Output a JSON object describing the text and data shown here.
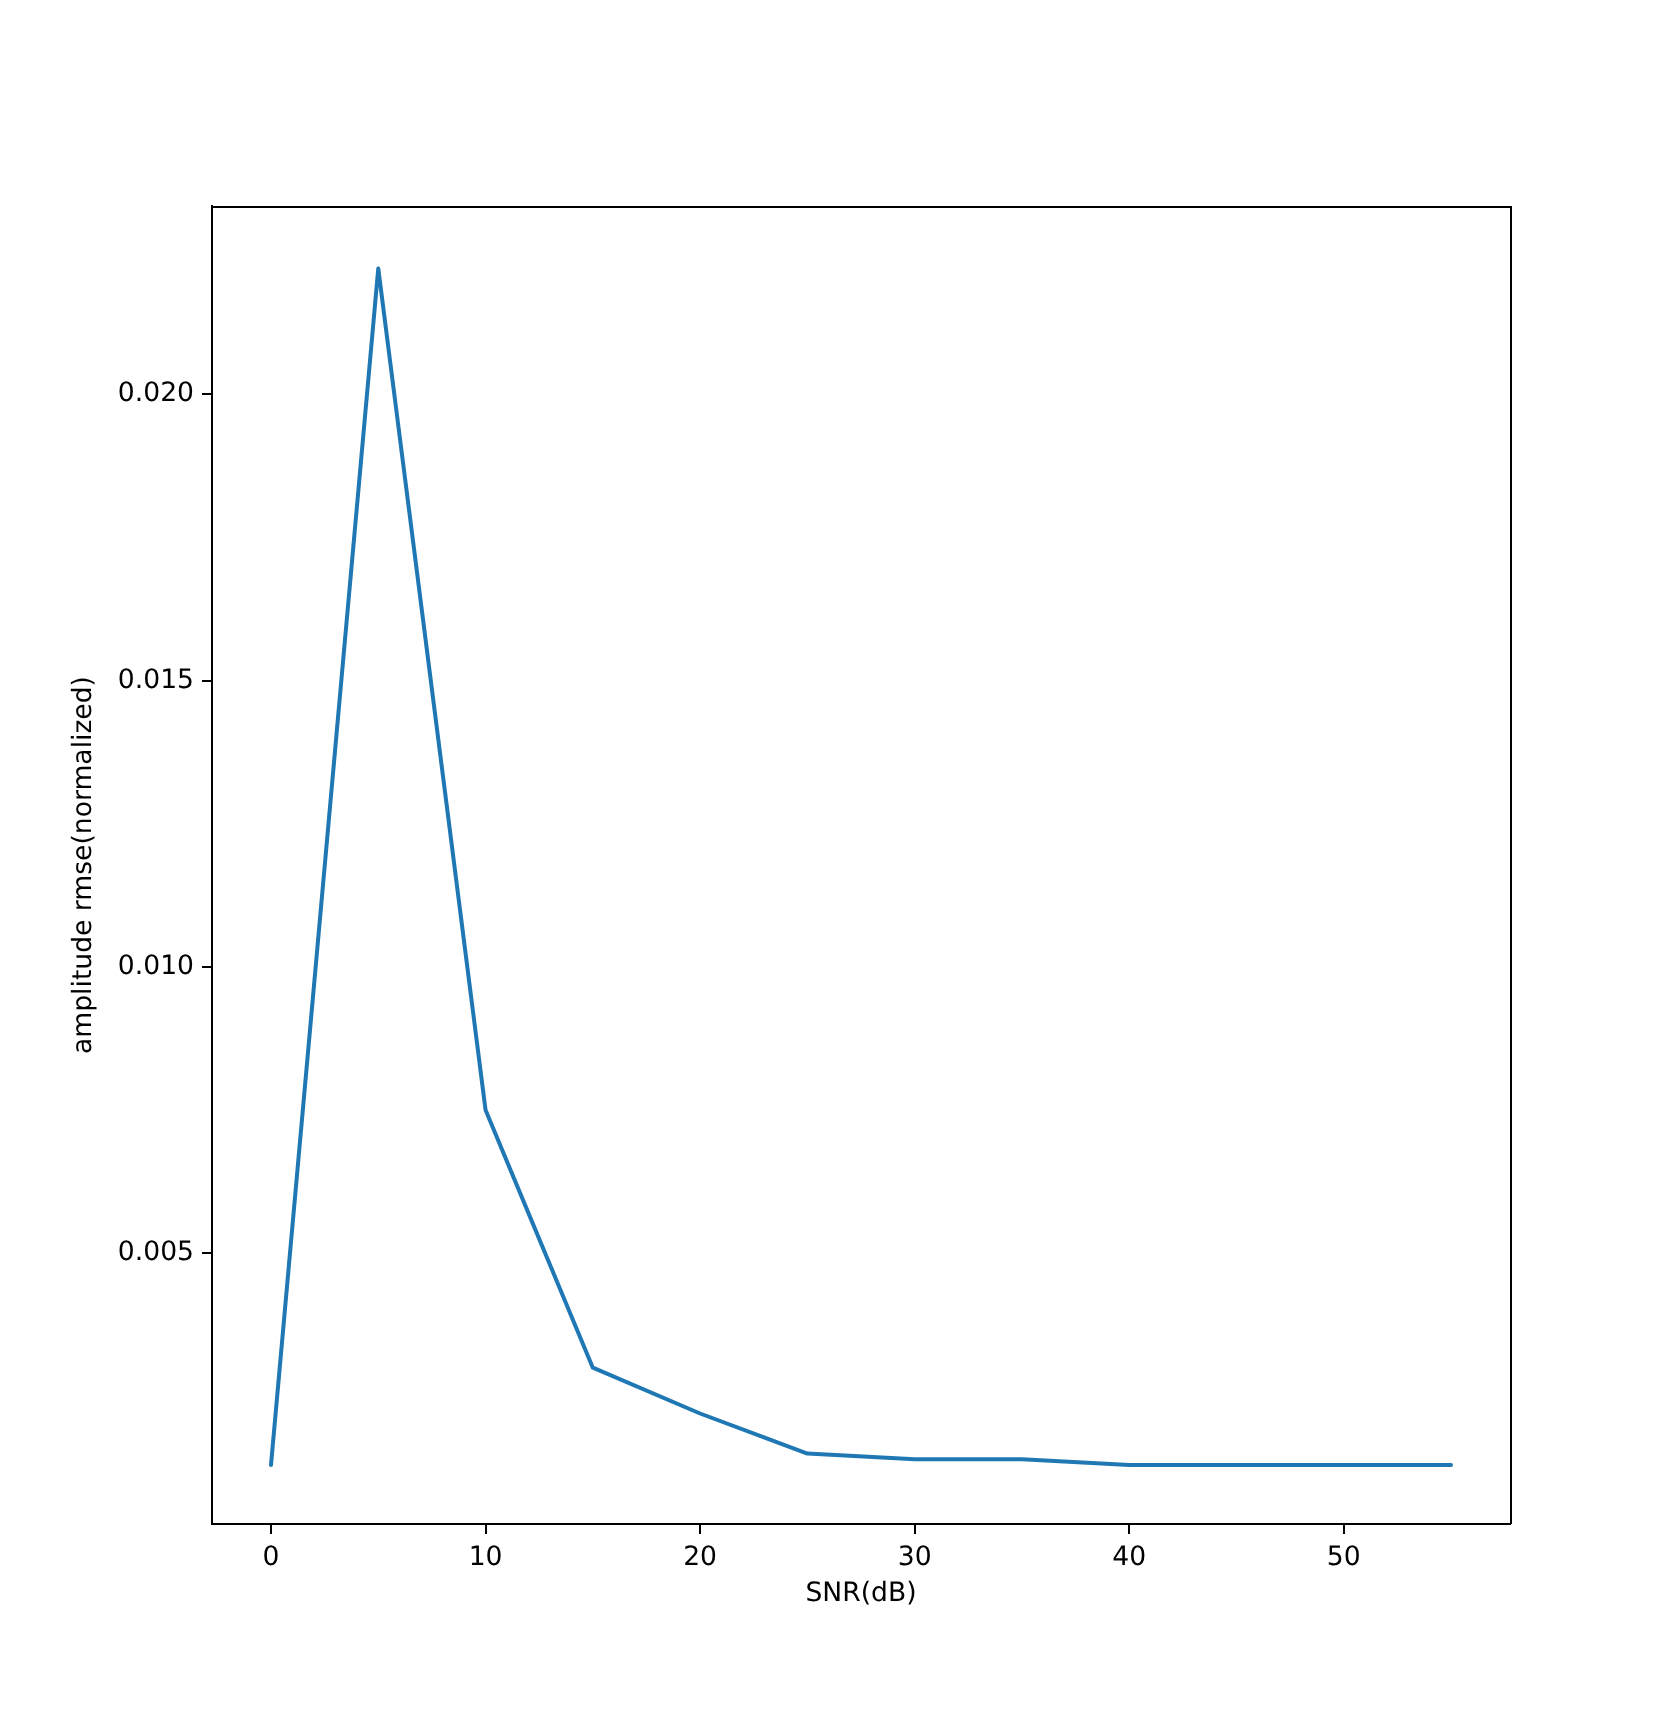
{
  "chart_data": {
    "type": "line",
    "xlabel": "SNR(dB)",
    "ylabel": "amplitude rmse(normalized)",
    "x": [
      0,
      5,
      10,
      15,
      20,
      25,
      30,
      35,
      40,
      45,
      50,
      55
    ],
    "series": [
      {
        "color": "#1f77b4",
        "values": [
          0.0013,
          0.0222,
          0.0075,
          0.003,
          0.0022,
          0.0015,
          0.0014,
          0.0014,
          0.0013,
          0.0013,
          0.0013,
          0.0013
        ]
      }
    ],
    "xlim": [
      -2.75,
      57.75
    ],
    "xticks": [
      0,
      10,
      20,
      30,
      40,
      50
    ],
    "ylim": [
      0.00027,
      0.02329
    ],
    "yticks": [
      0.005,
      {
        "value": 0.01,
        "label": "0.010"
      },
      0.015,
      {
        "value": 0.02,
        "label": "0.020"
      }
    ],
    "grid": false,
    "legend": false
  }
}
